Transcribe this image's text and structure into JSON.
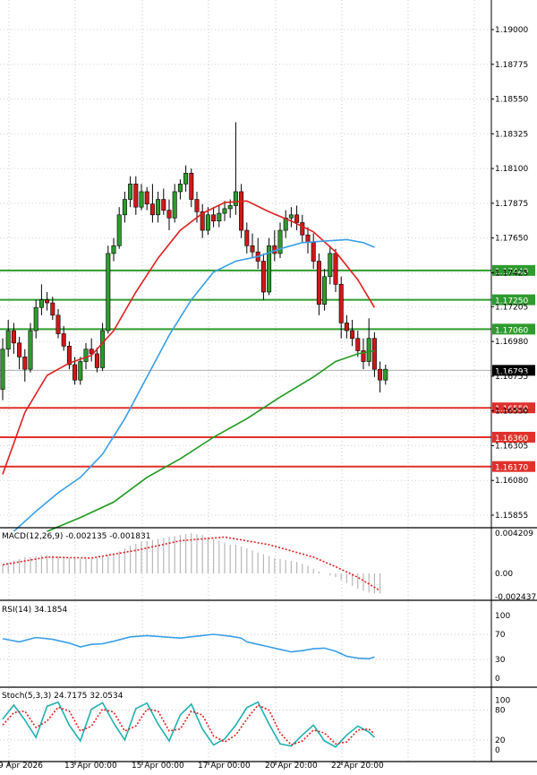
{
  "chart_data": [
    {
      "type": "candlestick",
      "title": "",
      "colors": {
        "up": "#2e9b2e",
        "down": "#d01818",
        "wick": "#000000",
        "sma_fast": "#e02020",
        "sma_mid": "#3a9ee8",
        "sma_slow": "#1f9a1f",
        "level_resistance": "#2e9b2e",
        "level_support": "#e0302a"
      },
      "ylim": [
        1.1575,
        1.1912
      ],
      "y_ticks": [
        "1.19000",
        "1.18775",
        "1.18550",
        "1.18325",
        "1.18100",
        "1.17875",
        "1.17650",
        "1.17425",
        "1.17205",
        "1.16980",
        "1.16755",
        "1.16530",
        "1.16305",
        "1.16080",
        "1.15855"
      ],
      "x_ticks": [
        "9 Apr 2026",
        "13 Apr 00:00",
        "15 Apr 00:00",
        "17 Apr 00:00",
        "20 Apr 20:00",
        "22 Apr 20:00"
      ],
      "current_price": "1.16793",
      "levels": [
        {
          "label": "1.17440",
          "value": 1.1744,
          "kind": "resistance"
        },
        {
          "label": "1.17250",
          "value": 1.1725,
          "kind": "resistance"
        },
        {
          "label": "1.17060",
          "value": 1.1706,
          "kind": "resistance"
        },
        {
          "label": "1.16550",
          "value": 1.1655,
          "kind": "support"
        },
        {
          "label": "1.16360",
          "value": 1.1636,
          "kind": "support"
        },
        {
          "label": "1.16170",
          "value": 1.1617,
          "kind": "support"
        }
      ],
      "candles": [
        [
          1.1667,
          1.17,
          1.166,
          1.1693
        ],
        [
          1.1693,
          1.1712,
          1.1688,
          1.1705
        ],
        [
          1.1705,
          1.171,
          1.169,
          1.1697
        ],
        [
          1.1697,
          1.1701,
          1.168,
          1.1688
        ],
        [
          1.1688,
          1.1693,
          1.1672,
          1.168
        ],
        [
          1.168,
          1.171,
          1.1678,
          1.1705
        ],
        [
          1.1705,
          1.1725,
          1.17,
          1.172
        ],
        [
          1.172,
          1.1735,
          1.1715,
          1.1725
        ],
        [
          1.1725,
          1.173,
          1.1718,
          1.1723
        ],
        [
          1.1723,
          1.1727,
          1.1712,
          1.1715
        ],
        [
          1.1715,
          1.1719,
          1.17,
          1.1703
        ],
        [
          1.1703,
          1.1708,
          1.1692,
          1.1695
        ],
        [
          1.1695,
          1.1698,
          1.168,
          1.1683
        ],
        [
          1.1683,
          1.1688,
          1.167,
          1.1673
        ],
        [
          1.1673,
          1.1688,
          1.167,
          1.1685
        ],
        [
          1.1685,
          1.1697,
          1.168,
          1.1693
        ],
        [
          1.1693,
          1.17,
          1.1685,
          1.169
        ],
        [
          1.169,
          1.1694,
          1.1678,
          1.1681
        ],
        [
          1.1681,
          1.171,
          1.1679,
          1.1705
        ],
        [
          1.1705,
          1.176,
          1.1703,
          1.1755
        ],
        [
          1.1755,
          1.1765,
          1.175,
          1.176
        ],
        [
          1.176,
          1.1785,
          1.1758,
          1.178
        ],
        [
          1.178,
          1.1795,
          1.1775,
          1.179
        ],
        [
          1.179,
          1.1805,
          1.1785,
          1.18
        ],
        [
          1.18,
          1.1805,
          1.178,
          1.1785
        ],
        [
          1.1785,
          1.18,
          1.1783,
          1.1795
        ],
        [
          1.1795,
          1.1798,
          1.1783,
          1.1787
        ],
        [
          1.1787,
          1.18,
          1.1775,
          1.178
        ],
        [
          1.178,
          1.1795,
          1.1775,
          1.179
        ],
        [
          1.179,
          1.1797,
          1.178,
          1.1783
        ],
        [
          1.1783,
          1.179,
          1.177,
          1.1778
        ],
        [
          1.1778,
          1.18,
          1.1775,
          1.1795
        ],
        [
          1.1795,
          1.1803,
          1.179,
          1.18
        ],
        [
          1.18,
          1.1812,
          1.1795,
          1.1807
        ],
        [
          1.1807,
          1.181,
          1.1785,
          1.179
        ],
        [
          1.179,
          1.1795,
          1.1775,
          1.1782
        ],
        [
          1.1782,
          1.1787,
          1.1765,
          1.177
        ],
        [
          1.177,
          1.1785,
          1.1767,
          1.178
        ],
        [
          1.178,
          1.1785,
          1.1772,
          1.1776
        ],
        [
          1.1776,
          1.1786,
          1.1772,
          1.1781
        ],
        [
          1.1781,
          1.1789,
          1.1776,
          1.1784
        ],
        [
          1.1784,
          1.179,
          1.1778,
          1.1786
        ],
        [
          1.1786,
          1.184,
          1.178,
          1.1795
        ],
        [
          1.1795,
          1.18,
          1.1765,
          1.177
        ],
        [
          1.177,
          1.1775,
          1.1755,
          1.176
        ],
        [
          1.176,
          1.1768,
          1.1752,
          1.1756
        ],
        [
          1.1756,
          1.1765,
          1.1745,
          1.175
        ],
        [
          1.175,
          1.1755,
          1.1725,
          1.173
        ],
        [
          1.173,
          1.1765,
          1.1728,
          1.176
        ],
        [
          1.176,
          1.177,
          1.175,
          1.1755
        ],
        [
          1.1755,
          1.1775,
          1.1752,
          1.177
        ],
        [
          1.177,
          1.1783,
          1.1765,
          1.1778
        ],
        [
          1.1778,
          1.1785,
          1.1772,
          1.178
        ],
        [
          1.178,
          1.1786,
          1.177,
          1.1775
        ],
        [
          1.1775,
          1.178,
          1.1762,
          1.1767
        ],
        [
          1.1767,
          1.1772,
          1.1755,
          1.1762
        ],
        [
          1.1762,
          1.1768,
          1.1745,
          1.175
        ],
        [
          1.175,
          1.1755,
          1.1715,
          1.1722
        ],
        [
          1.1722,
          1.1745,
          1.1718,
          1.174
        ],
        [
          1.174,
          1.176,
          1.1735,
          1.1755
        ],
        [
          1.1755,
          1.1758,
          1.173,
          1.1735
        ],
        [
          1.1735,
          1.174,
          1.17,
          1.171
        ],
        [
          1.171,
          1.1715,
          1.17,
          1.1705
        ],
        [
          1.1705,
          1.1712,
          1.1695,
          1.17
        ],
        [
          1.17,
          1.1705,
          1.1688,
          1.1692
        ],
        [
          1.1692,
          1.17,
          1.168,
          1.1685
        ],
        [
          1.1685,
          1.1713,
          1.1682,
          1.17
        ],
        [
          1.17,
          1.1704,
          1.1675,
          1.168
        ],
        [
          1.168,
          1.1685,
          1.1665,
          1.1673
        ],
        [
          1.1673,
          1.1683,
          1.167,
          1.168
        ]
      ],
      "sma_fast": [
        [
          0,
          1.1612
        ],
        [
          4,
          1.1652
        ],
        [
          8,
          1.1676
        ],
        [
          12,
          1.1684
        ],
        [
          16,
          1.1689
        ],
        [
          20,
          1.1705
        ],
        [
          24,
          1.173
        ],
        [
          28,
          1.1752
        ],
        [
          32,
          1.177
        ],
        [
          36,
          1.1781
        ],
        [
          40,
          1.1788
        ],
        [
          44,
          1.1789
        ],
        [
          48,
          1.1782
        ],
        [
          52,
          1.1776
        ],
        [
          56,
          1.1769
        ],
        [
          60,
          1.1756
        ],
        [
          64,
          1.1738
        ],
        [
          67,
          1.172
        ]
      ],
      "sma_mid": [
        [
          2,
          1.1575
        ],
        [
          6,
          1.1588
        ],
        [
          10,
          1.16
        ],
        [
          14,
          1.161
        ],
        [
          18,
          1.1625
        ],
        [
          22,
          1.1648
        ],
        [
          26,
          1.1675
        ],
        [
          30,
          1.1702
        ],
        [
          34,
          1.1725
        ],
        [
          38,
          1.1743
        ],
        [
          42,
          1.175
        ],
        [
          46,
          1.1753
        ],
        [
          50,
          1.1758
        ],
        [
          54,
          1.1762
        ],
        [
          58,
          1.1763
        ],
        [
          62,
          1.1764
        ],
        [
          65,
          1.1762
        ],
        [
          67,
          1.1759
        ]
      ],
      "sma_slow": [
        [
          8,
          1.1575
        ],
        [
          14,
          1.1584
        ],
        [
          20,
          1.1594
        ],
        [
          26,
          1.161
        ],
        [
          32,
          1.1622
        ],
        [
          38,
          1.1636
        ],
        [
          44,
          1.1648
        ],
        [
          50,
          1.1662
        ],
        [
          56,
          1.1675
        ],
        [
          60,
          1.1685
        ],
        [
          64,
          1.169
        ],
        [
          67,
          1.1692
        ]
      ]
    },
    {
      "type": "histogram",
      "label": "MACD(12,26,9) -0.002135 -0.001831",
      "y_ticks": [
        "0.004209",
        "0.00",
        "-0.002437"
      ],
      "ylim": [
        -0.0031,
        0.0052
      ],
      "values": [
        0.0008,
        0.0011,
        0.0013,
        0.0015,
        0.0017,
        0.0017,
        0.0018,
        0.0019,
        0.0019,
        0.0019,
        0.0018,
        0.0017,
        0.0016,
        0.0016,
        0.0015,
        0.0015,
        0.0015,
        0.0016,
        0.0017,
        0.0019,
        0.0021,
        0.0023,
        0.0026,
        0.0029,
        0.0031,
        0.0033,
        0.0034,
        0.0035,
        0.0036,
        0.0037,
        0.0038,
        0.0039,
        0.004,
        0.0041,
        0.0042,
        0.0041,
        0.004,
        0.0038,
        0.0036,
        0.0034,
        0.0032,
        0.003,
        0.003,
        0.0028,
        0.0026,
        0.0024,
        0.0022,
        0.002,
        0.0018,
        0.0016,
        0.0015,
        0.0014,
        0.0013,
        0.0012,
        0.001,
        0.0008,
        0.0005,
        0.0002,
        0.0,
        -0.0002,
        -0.0004,
        -0.0007,
        -0.001,
        -0.0013,
        -0.0016,
        -0.0018,
        -0.002,
        -0.0021,
        -0.0021
      ],
      "signal": [
        [
          0,
          0.0009
        ],
        [
          8,
          0.0017
        ],
        [
          16,
          0.0016
        ],
        [
          24,
          0.0024
        ],
        [
          32,
          0.0034
        ],
        [
          40,
          0.0038
        ],
        [
          48,
          0.003
        ],
        [
          56,
          0.0017
        ],
        [
          60,
          0.0007
        ],
        [
          64,
          -0.0004
        ],
        [
          68,
          -0.0018
        ]
      ]
    },
    {
      "type": "line",
      "label": "RSI(14) 34.1854",
      "y_ticks": [
        "100",
        "70",
        "30",
        "0"
      ],
      "ylim": [
        0,
        100
      ],
      "values": [
        [
          0,
          63
        ],
        [
          3,
          58
        ],
        [
          6,
          65
        ],
        [
          9,
          62
        ],
        [
          12,
          56
        ],
        [
          14,
          50
        ],
        [
          16,
          54
        ],
        [
          18,
          55
        ],
        [
          20,
          59
        ],
        [
          23,
          66
        ],
        [
          26,
          68
        ],
        [
          29,
          66
        ],
        [
          32,
          64
        ],
        [
          35,
          67
        ],
        [
          38,
          70
        ],
        [
          41,
          67
        ],
        [
          43,
          64
        ],
        [
          44,
          58
        ],
        [
          46,
          54
        ],
        [
          48,
          50
        ],
        [
          50,
          46
        ],
        [
          52,
          42
        ],
        [
          54,
          44
        ],
        [
          56,
          47
        ],
        [
          58,
          48
        ],
        [
          60,
          43
        ],
        [
          62,
          35
        ],
        [
          64,
          32
        ],
        [
          66,
          31
        ],
        [
          67,
          34
        ]
      ]
    },
    {
      "type": "line",
      "label": "Stoch(5,3,3) 24.7175 32.0534",
      "y_ticks": [
        "100",
        "80",
        "20",
        "0"
      ],
      "ylim": [
        0,
        100
      ],
      "main": [
        [
          0,
          62
        ],
        [
          2,
          90
        ],
        [
          4,
          60
        ],
        [
          6,
          25
        ],
        [
          8,
          88
        ],
        [
          10,
          96
        ],
        [
          12,
          50
        ],
        [
          14,
          18
        ],
        [
          16,
          82
        ],
        [
          18,
          95
        ],
        [
          20,
          54
        ],
        [
          22,
          20
        ],
        [
          24,
          83
        ],
        [
          26,
          94
        ],
        [
          28,
          52
        ],
        [
          30,
          18
        ],
        [
          32,
          70
        ],
        [
          34,
          92
        ],
        [
          36,
          42
        ],
        [
          38,
          10
        ],
        [
          40,
          22
        ],
        [
          42,
          50
        ],
        [
          44,
          85
        ],
        [
          46,
          96
        ],
        [
          48,
          52
        ],
        [
          50,
          12
        ],
        [
          52,
          8
        ],
        [
          54,
          30
        ],
        [
          56,
          50
        ],
        [
          58,
          18
        ],
        [
          60,
          6
        ],
        [
          62,
          30
        ],
        [
          64,
          48
        ],
        [
          66,
          36
        ],
        [
          67,
          25
        ]
      ],
      "signal": [
        [
          0,
          50
        ],
        [
          2,
          75
        ],
        [
          4,
          78
        ],
        [
          6,
          45
        ],
        [
          8,
          58
        ],
        [
          10,
          86
        ],
        [
          12,
          78
        ],
        [
          14,
          38
        ],
        [
          16,
          48
        ],
        [
          18,
          82
        ],
        [
          20,
          76
        ],
        [
          22,
          38
        ],
        [
          24,
          48
        ],
        [
          26,
          82
        ],
        [
          28,
          78
        ],
        [
          30,
          38
        ],
        [
          32,
          42
        ],
        [
          34,
          78
        ],
        [
          36,
          70
        ],
        [
          38,
          28
        ],
        [
          40,
          16
        ],
        [
          42,
          30
        ],
        [
          44,
          62
        ],
        [
          46,
          90
        ],
        [
          48,
          80
        ],
        [
          50,
          34
        ],
        [
          52,
          10
        ],
        [
          54,
          18
        ],
        [
          56,
          40
        ],
        [
          58,
          34
        ],
        [
          60,
          12
        ],
        [
          62,
          16
        ],
        [
          64,
          40
        ],
        [
          66,
          42
        ],
        [
          67,
          32
        ]
      ]
    }
  ]
}
